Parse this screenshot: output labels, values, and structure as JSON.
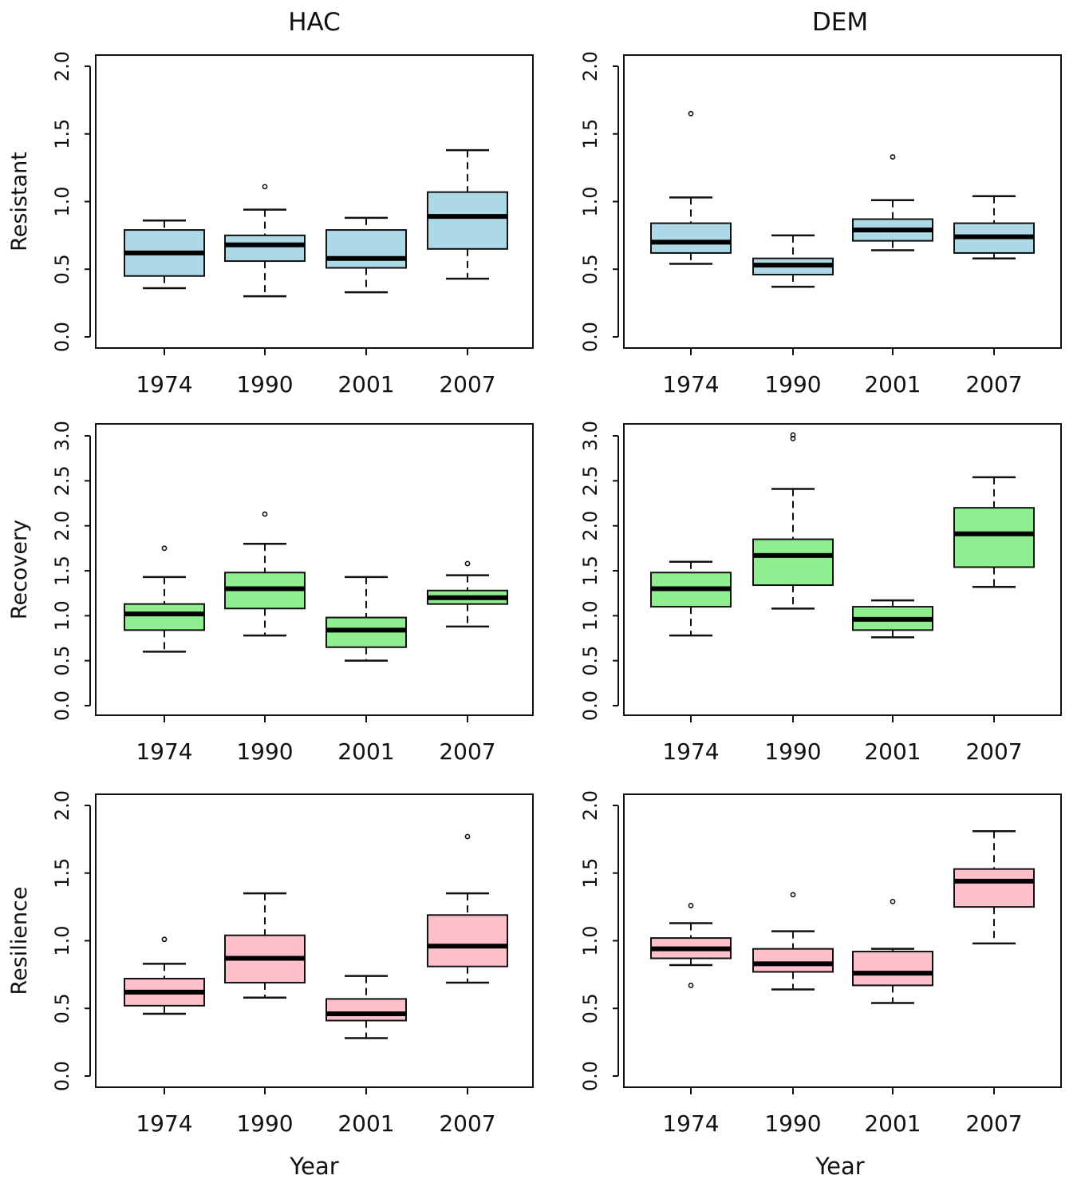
{
  "column_titles": [
    "HAC",
    "DEM"
  ],
  "xlabel": "Year",
  "colors": {
    "Resistant": "#add8e6",
    "Recovery": "#90ee90",
    "Resilience": "#ffc0cb"
  },
  "chart_data": [
    {
      "type": "box",
      "row": 0,
      "col": 0,
      "panel": "HAC",
      "ylabel": "Resistant",
      "categories": [
        "1974",
        "1990",
        "2001",
        "2007"
      ],
      "ylim": [
        0,
        2
      ],
      "yticks": [
        "0.0",
        "0.5",
        "1.0",
        "1.5",
        "2.0"
      ],
      "boxes": [
        {
          "min": 0.36,
          "q1": 0.45,
          "median": 0.62,
          "q3": 0.79,
          "max": 0.86,
          "outliers": []
        },
        {
          "min": 0.3,
          "q1": 0.56,
          "median": 0.68,
          "q3": 0.75,
          "max": 0.94,
          "outliers": [
            1.11
          ]
        },
        {
          "min": 0.33,
          "q1": 0.51,
          "median": 0.58,
          "q3": 0.79,
          "max": 0.88,
          "outliers": []
        },
        {
          "min": 0.43,
          "q1": 0.65,
          "median": 0.89,
          "q3": 1.07,
          "max": 1.38,
          "outliers": []
        }
      ]
    },
    {
      "type": "box",
      "row": 0,
      "col": 1,
      "panel": "DEM",
      "ylabel": "",
      "categories": [
        "1974",
        "1990",
        "2001",
        "2007"
      ],
      "ylim": [
        0,
        2
      ],
      "yticks": [
        "0.0",
        "0.5",
        "1.0",
        "1.5",
        "2.0"
      ],
      "boxes": [
        {
          "min": 0.54,
          "q1": 0.62,
          "median": 0.7,
          "q3": 0.84,
          "max": 1.03,
          "outliers": [
            1.65
          ]
        },
        {
          "min": 0.37,
          "q1": 0.46,
          "median": 0.53,
          "q3": 0.58,
          "max": 0.75,
          "outliers": []
        },
        {
          "min": 0.64,
          "q1": 0.71,
          "median": 0.79,
          "q3": 0.87,
          "max": 1.01,
          "outliers": [
            1.33
          ]
        },
        {
          "min": 0.58,
          "q1": 0.62,
          "median": 0.74,
          "q3": 0.84,
          "max": 1.04,
          "outliers": []
        }
      ]
    },
    {
      "type": "box",
      "row": 1,
      "col": 0,
      "panel": "HAC",
      "ylabel": "Recovery",
      "categories": [
        "1974",
        "1990",
        "2001",
        "2007"
      ],
      "ylim": [
        0,
        3
      ],
      "yticks": [
        "0.0",
        "0.5",
        "1.0",
        "1.5",
        "2.0",
        "2.5",
        "3.0"
      ],
      "boxes": [
        {
          "min": 0.6,
          "q1": 0.84,
          "median": 1.02,
          "q3": 1.13,
          "max": 1.43,
          "outliers": [
            1.75
          ]
        },
        {
          "min": 0.78,
          "q1": 1.08,
          "median": 1.3,
          "q3": 1.48,
          "max": 1.8,
          "outliers": [
            2.13
          ]
        },
        {
          "min": 0.5,
          "q1": 0.65,
          "median": 0.84,
          "q3": 0.98,
          "max": 1.43,
          "outliers": []
        },
        {
          "min": 0.88,
          "q1": 1.13,
          "median": 1.2,
          "q3": 1.28,
          "max": 1.45,
          "outliers": [
            1.58
          ]
        }
      ]
    },
    {
      "type": "box",
      "row": 1,
      "col": 1,
      "panel": "DEM",
      "ylabel": "",
      "categories": [
        "1974",
        "1990",
        "2001",
        "2007"
      ],
      "ylim": [
        0,
        3
      ],
      "yticks": [
        "0.0",
        "0.5",
        "1.0",
        "1.5",
        "2.0",
        "2.5",
        "3.0"
      ],
      "boxes": [
        {
          "min": 0.78,
          "q1": 1.1,
          "median": 1.3,
          "q3": 1.48,
          "max": 1.6,
          "outliers": []
        },
        {
          "min": 1.08,
          "q1": 1.34,
          "median": 1.67,
          "q3": 1.85,
          "max": 2.41,
          "outliers": [
            2.97,
            3.01
          ]
        },
        {
          "min": 0.76,
          "q1": 0.84,
          "median": 0.96,
          "q3": 1.1,
          "max": 1.17,
          "outliers": []
        },
        {
          "min": 1.32,
          "q1": 1.54,
          "median": 1.91,
          "q3": 2.2,
          "max": 2.54,
          "outliers": []
        }
      ]
    },
    {
      "type": "box",
      "row": 2,
      "col": 0,
      "panel": "HAC",
      "ylabel": "Resilience",
      "categories": [
        "1974",
        "1990",
        "2001",
        "2007"
      ],
      "ylim": [
        0,
        2
      ],
      "yticks": [
        "0.0",
        "0.5",
        "1.0",
        "1.5",
        "2.0"
      ],
      "boxes": [
        {
          "min": 0.46,
          "q1": 0.52,
          "median": 0.62,
          "q3": 0.72,
          "max": 0.83,
          "outliers": [
            1.01
          ]
        },
        {
          "min": 0.58,
          "q1": 0.69,
          "median": 0.87,
          "q3": 1.04,
          "max": 1.35,
          "outliers": []
        },
        {
          "min": 0.28,
          "q1": 0.41,
          "median": 0.46,
          "q3": 0.57,
          "max": 0.74,
          "outliers": []
        },
        {
          "min": 0.69,
          "q1": 0.81,
          "median": 0.96,
          "q3": 1.19,
          "max": 1.35,
          "outliers": [
            1.77
          ]
        }
      ]
    },
    {
      "type": "box",
      "row": 2,
      "col": 1,
      "panel": "DEM",
      "ylabel": "",
      "categories": [
        "1974",
        "1990",
        "2001",
        "2007"
      ],
      "ylim": [
        0,
        2
      ],
      "yticks": [
        "0.0",
        "0.5",
        "1.0",
        "1.5",
        "2.0"
      ],
      "boxes": [
        {
          "min": 0.82,
          "q1": 0.87,
          "median": 0.94,
          "q3": 1.02,
          "max": 1.13,
          "outliers": [
            1.26,
            0.67
          ]
        },
        {
          "min": 0.64,
          "q1": 0.77,
          "median": 0.83,
          "q3": 0.94,
          "max": 1.07,
          "outliers": [
            1.34
          ]
        },
        {
          "min": 0.54,
          "q1": 0.67,
          "median": 0.76,
          "q3": 0.92,
          "max": 0.94,
          "outliers": [
            1.29
          ]
        },
        {
          "min": 0.98,
          "q1": 1.25,
          "median": 1.44,
          "q3": 1.53,
          "max": 1.81,
          "outliers": []
        }
      ]
    }
  ]
}
